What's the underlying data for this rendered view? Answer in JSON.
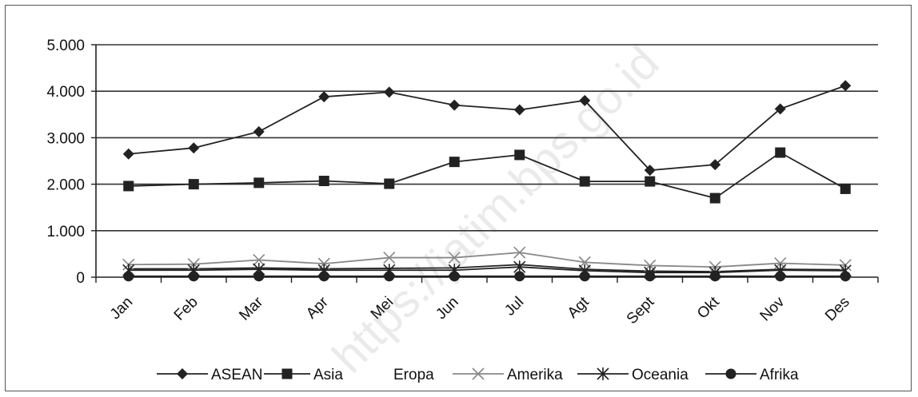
{
  "chart_data": {
    "type": "line",
    "title": "",
    "xlabel": "",
    "ylabel": "",
    "categories": [
      "Jan",
      "Feb",
      "Mar",
      "Apr",
      "Mei",
      "Jun",
      "Jul",
      "Agt",
      "Sept",
      "Okt",
      "Nov",
      "Des"
    ],
    "y_ticks": [
      "0",
      "1.000",
      "2.000",
      "3.000",
      "4.000",
      "5.000"
    ],
    "ylim": [
      0,
      5000
    ],
    "grid": "horizontal",
    "legend_position": "bottom",
    "series": [
      {
        "name": "ASEAN",
        "marker": "diamond",
        "color": "#222222",
        "values": [
          2650,
          2780,
          3130,
          3880,
          3980,
          3700,
          3600,
          3800,
          2300,
          2420,
          3620,
          4120
        ]
      },
      {
        "name": "Asia",
        "marker": "square",
        "color": "#222222",
        "values": [
          1960,
          2000,
          2030,
          2070,
          2010,
          2480,
          2630,
          2060,
          2060,
          1700,
          2680,
          1900
        ]
      },
      {
        "name": "Eropa",
        "marker": "none",
        "color": "#222222",
        "values": [
          180,
          180,
          200,
          180,
          190,
          200,
          270,
          170,
          130,
          120,
          170,
          160
        ]
      },
      {
        "name": "Amerika",
        "marker": "x",
        "color": "#888888",
        "values": [
          270,
          280,
          370,
          290,
          420,
          420,
          530,
          320,
          250,
          220,
          300,
          260
        ]
      },
      {
        "name": "Oceania",
        "marker": "star",
        "color": "#222222",
        "values": [
          150,
          150,
          170,
          150,
          150,
          150,
          220,
          140,
          100,
          100,
          150,
          140
        ]
      },
      {
        "name": "Afrika",
        "marker": "circle",
        "color": "#222222",
        "values": [
          20,
          20,
          20,
          20,
          20,
          20,
          20,
          20,
          20,
          20,
          20,
          20
        ]
      }
    ]
  },
  "watermark": "https://jatim.bps.go.id"
}
